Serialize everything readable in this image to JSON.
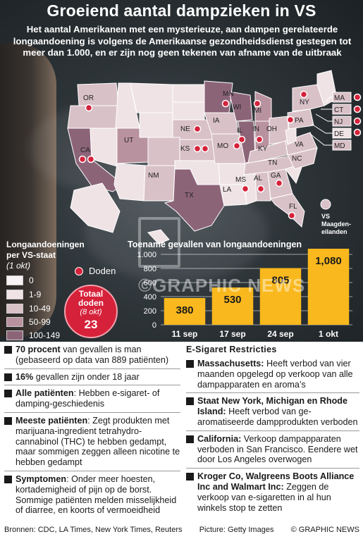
{
  "title": "Groeiend aantal dampzieken in VS",
  "subtitle": "Het aantal Amerikanen met een mysterieuze, aan dampen gerelateerde longaandoening is volgens de Amerikaanse gezondheidsdienst gestegen tot meer dan 1.000, en er zijn nog geen tekenen van afname van de uitbraak",
  "colors": {
    "darkest": "#5c3a4c",
    "dark": "#8c6478",
    "mid": "#b9929f",
    "light": "#d9c1c8",
    "lightest": "#efe3e6",
    "zero": "#f7f2f4",
    "death": "#d6213a",
    "bar": "#f9b81d"
  },
  "map": {
    "states": [
      "OR",
      "CA",
      "UT",
      "NM",
      "TX",
      "NE",
      "KS",
      "MN",
      "IA",
      "MO",
      "WI",
      "IL",
      "MI",
      "IN",
      "OH",
      "KY",
      "TN",
      "MS",
      "AL",
      "GA",
      "FL",
      "NC",
      "VA",
      "PA",
      "NY",
      "LA"
    ],
    "callout_states": [
      "MA",
      "CT",
      "NJ",
      "DE",
      "MD"
    ],
    "virgin_islands": "VS Maagden-eilanden"
  },
  "legend": {
    "title_line1": "Longaandoeningen",
    "title_line2": "per VS-staat",
    "date": "(1 okt)",
    "deaths_label": "Doden",
    "ranges": [
      {
        "label": "0",
        "color": "#f7f2f4"
      },
      {
        "label": "1-9",
        "color": "#efe3e6"
      },
      {
        "label": "10-49",
        "color": "#d9c1c8"
      },
      {
        "label": "50-99",
        "color": "#b9929f"
      },
      {
        "label": "100-149",
        "color": "#8c6478"
      }
    ],
    "deaths_total_line1": "Totaal",
    "deaths_total_line2": "doden",
    "deaths_total_date": "(8 okt)",
    "deaths_total_value": "23"
  },
  "watermark": "©GRAPHIC NEWS",
  "chart_data": {
    "type": "bar",
    "title": "Toename gevallen van longaandoeningen",
    "categories": [
      "11 sep",
      "17 sep",
      "24 sep",
      "1 okt"
    ],
    "values": [
      380,
      530,
      805,
      1080
    ],
    "value_labels": [
      "380",
      "530",
      "805",
      "1,080"
    ],
    "ylim": [
      0,
      1000
    ],
    "yticks": [
      0,
      200,
      400,
      600,
      800,
      1000
    ],
    "ytick_labels": [
      "0",
      "200",
      "400",
      "600",
      "800",
      "1.000"
    ],
    "bar_color": "#f9b81d",
    "grid": true
  },
  "stats": [
    {
      "bold": "70 procent",
      "text": " van gevallen is man (gebaseerd op data van 889 patiënten)"
    },
    {
      "bold": "16%",
      "text": " gevallen zijn onder 18 jaar"
    },
    {
      "bold": "Alle patiënten",
      "text": ": Hebben e-sigaret- of damping-geschiedenis"
    },
    {
      "bold": "Meeste patiënten",
      "text": ": Zegt produkten met marijuana-ingredient tetrahydro-cannabinol (THC) te hebben gedampt, maar sommigen zeggen alleen nicotine te hebben gedampt"
    },
    {
      "bold": "Symptomen",
      "text": ": Onder meer hoesten, kortademigheid of pijn op de borst. Sommige patiënten melden misselijkheid of diarree, en koorts of vermoeidheid"
    }
  ],
  "restrictions": {
    "title": "E-Sigaret Restricties",
    "items": [
      {
        "bold": "Massachusetts:",
        "text": " Heeft verbod van vier maanden opgelegd op verkoop van alle dampapparaten en aroma’s"
      },
      {
        "bold": "Staat New York, Michigan en Rhode Island:",
        "text": " Heeft verbod van ge-aromatiseerde dampprodukten verboden"
      },
      {
        "bold": "California:",
        "text": " Verkoop dampapparaten verboden in San Francisco. Eendere wet door Los Angeles overwogen"
      },
      {
        "bold": "Kroger Co, Walgreens Boots Alliance Inc and Walmart Inc:",
        "text": " Zeggen de verkoop van e-sigaretten in al hun winkels stop te zetten"
      }
    ]
  },
  "footer": {
    "sources": "Bronnen: CDC, LA Times, New York Times, Reuters",
    "picture": "Picture: Getty Images",
    "copyright": "© GRAPHIC NEWS"
  }
}
